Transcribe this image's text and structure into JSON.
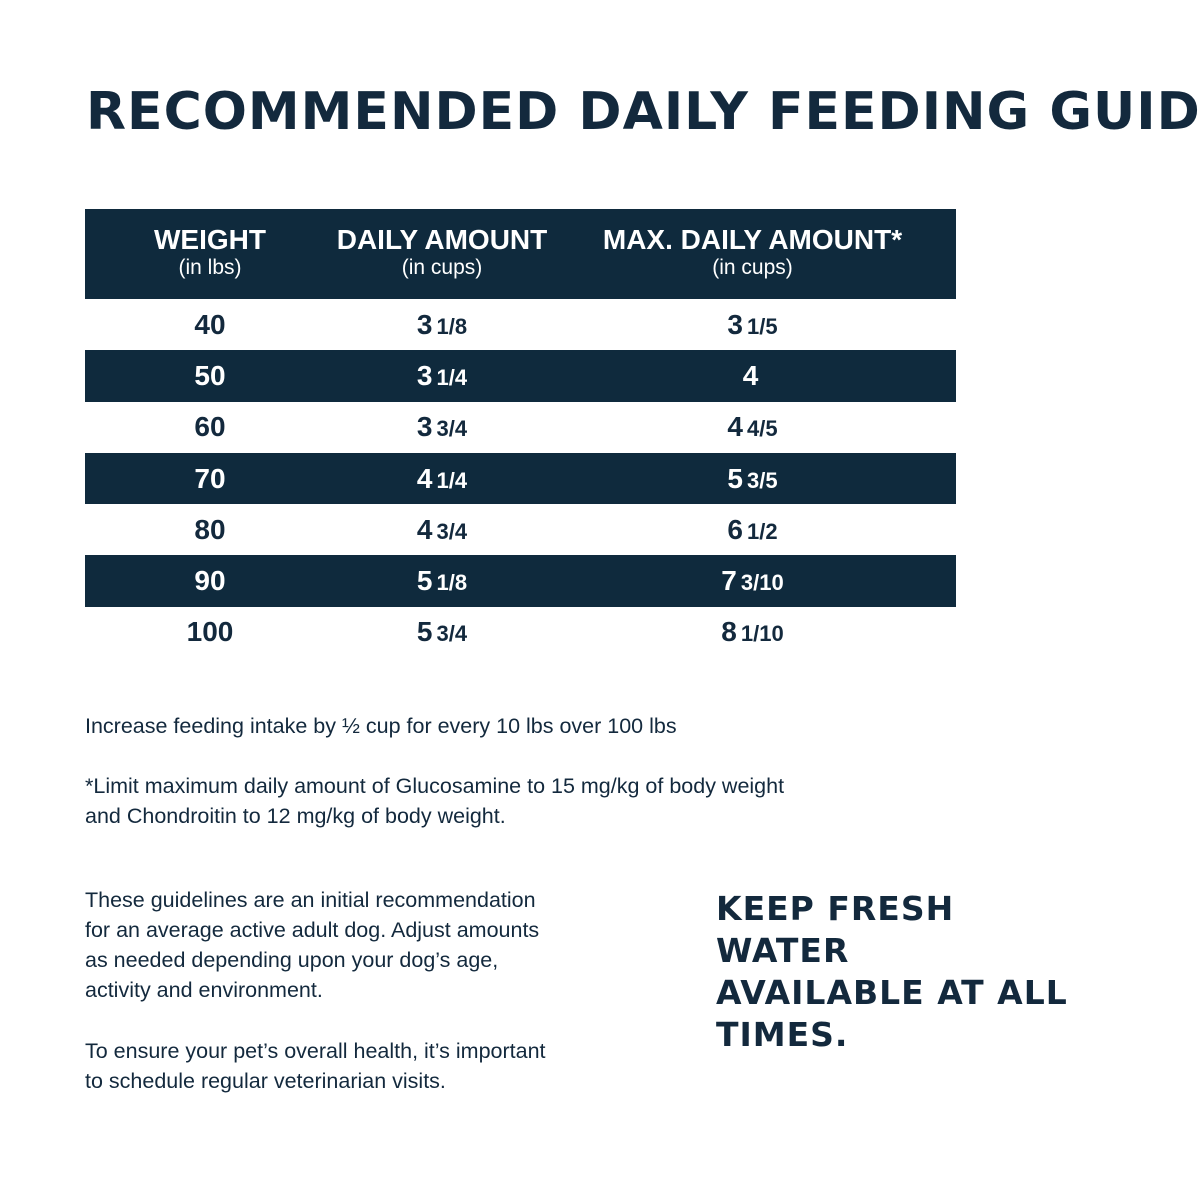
{
  "title": "RECOMMENDED DAILY FEEDING GUIDE",
  "table": {
    "headers": [
      {
        "label": "WEIGHT",
        "unit": "(in lbs)"
      },
      {
        "label": "DAILY AMOUNT",
        "unit": "(in cups)"
      },
      {
        "label": "MAX. DAILY AMOUNT*",
        "unit": "(in cups)"
      }
    ],
    "rows": [
      {
        "weight": "40",
        "daily": {
          "whole": "3",
          "frac": "1/8"
        },
        "max": {
          "whole": "3",
          "frac": "1/5"
        }
      },
      {
        "weight": "50",
        "daily": {
          "whole": "3",
          "frac": "1/4"
        },
        "max": {
          "whole": "4",
          "frac": ""
        }
      },
      {
        "weight": "60",
        "daily": {
          "whole": "3",
          "frac": "3/4"
        },
        "max": {
          "whole": "4",
          "frac": "4/5"
        }
      },
      {
        "weight": "70",
        "daily": {
          "whole": "4",
          "frac": "1/4"
        },
        "max": {
          "whole": "5",
          "frac": "3/5"
        }
      },
      {
        "weight": "80",
        "daily": {
          "whole": "4",
          "frac": "3/4"
        },
        "max": {
          "whole": "6",
          "frac": "1/2"
        }
      },
      {
        "weight": "90",
        "daily": {
          "whole": "5",
          "frac": "1/8"
        },
        "max": {
          "whole": "7",
          "frac": "3/10"
        }
      },
      {
        "weight": "100",
        "daily": {
          "whole": "5",
          "frac": "3/4"
        },
        "max": {
          "whole": "8",
          "frac": "1/10"
        }
      }
    ]
  },
  "notes": {
    "increase": "Increase feeding intake by ½ cup for every 10 lbs over 100 lbs",
    "limit_1": "*Limit maximum daily amount of Glucosamine to 15 mg/kg of body weight",
    "limit_2": "and Chondroitin to 12 mg/kg of body weight.",
    "guidelines": [
      "These guidelines are an initial recommendation",
      "for an average active adult dog. Adjust amounts",
      "as needed depending upon your dog’s age,",
      "activity and environment."
    ],
    "health": [
      "To ensure your pet’s overall health, it’s important",
      "to schedule regular veterinarian visits."
    ]
  },
  "water": [
    "KEEP FRESH WATER",
    "AVAILABLE AT ALL",
    "TIMES."
  ],
  "colors": {
    "navy": "#0f2a3d",
    "text": "#13293d"
  }
}
